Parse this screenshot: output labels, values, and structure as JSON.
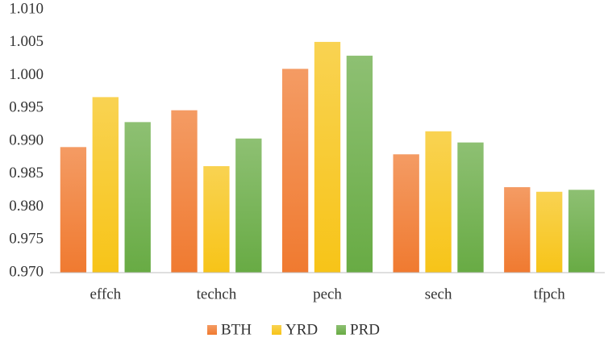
{
  "chart_data": {
    "type": "bar",
    "categories": [
      "effch",
      "techch",
      "pech",
      "sech",
      "tfpch"
    ],
    "series": [
      {
        "name": "BTH",
        "color": "#f07a30",
        "values": [
          0.9891,
          0.9947,
          1.001,
          0.988,
          0.983
        ]
      },
      {
        "name": "YRD",
        "color": "#f7c418",
        "values": [
          0.9967,
          0.9862,
          1.0051,
          0.9915,
          0.9823
        ]
      },
      {
        "name": "PRD",
        "color": "#68ab44",
        "values": [
          0.9929,
          0.9904,
          1.003,
          0.9898,
          0.9826
        ]
      }
    ],
    "ylim": [
      0.97,
      1.01
    ],
    "yticks": [
      {
        "value": 0.97,
        "label": "0.970"
      },
      {
        "value": 0.975,
        "label": "0.975"
      },
      {
        "value": 0.98,
        "label": "0.980"
      },
      {
        "value": 0.985,
        "label": "0.985"
      },
      {
        "value": 0.99,
        "label": "0.990"
      },
      {
        "value": 0.995,
        "label": "0.995"
      },
      {
        "value": 1.0,
        "label": "1.000"
      },
      {
        "value": 1.005,
        "label": "1.005"
      },
      {
        "value": 1.01,
        "label": "1.010"
      }
    ],
    "grid": false,
    "legend": "bottom"
  }
}
